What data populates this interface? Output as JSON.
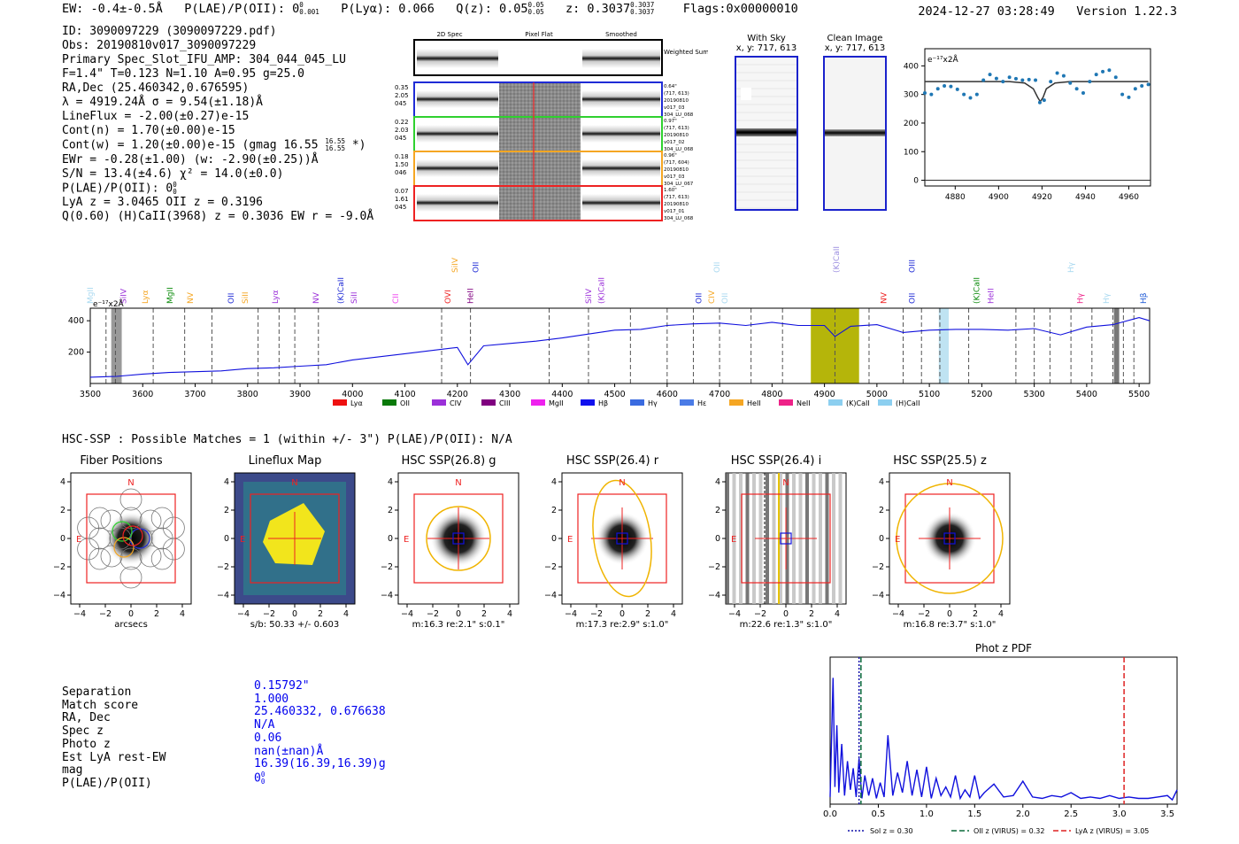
{
  "header": {
    "ew": "EW: -0.4±-0.5Å",
    "plae_label": "P(LAE)/P(OII): 0",
    "plae_sup": "0",
    "plae_sub": "0.001",
    "plya": "P(Lyα): 0.066",
    "qz_label": "Q(z): 0.05",
    "qz_sup": "0.05",
    "qz_sub": "0.05",
    "z_label": "z: 0.3037",
    "z_sup": "0.3037",
    "z_sub": "0.3037",
    "flags": "Flags:0x00000010",
    "timestamp": "2024-12-27 03:28:49",
    "version": "Version 1.22.3"
  },
  "info": {
    "id": "ID: 3090097229 (3090097229.pdf)",
    "obs": "Obs: 20190810v017_3090097229",
    "slot": "Primary Spec_Slot_IFU_AMP: 304_044_045_LU",
    "params": "F=1.4\"  T=0.123  N=1.10  A=0.95  g=25.0",
    "radec": "RA,Dec (25.460342,0.676595)",
    "lambda": "λ = 4919.24Å  σ = 9.54(±1.18)Å",
    "lineflux": "LineFlux = -2.00(±0.27)e-15",
    "contn": "Cont(n) = 1.70(±0.00)e-15",
    "contw": "Cont(w) = 1.20(±0.00)e-15 (gmag 16.55",
    "contw_sup": "16.55",
    "contw_sub": "16.55",
    "contw_end": "*)",
    "ewr": "EWr = -0.28(±1.00) (w: -2.90(±0.25))Å",
    "sn": "S/N = 13.4(±4.6)  χ² = 14.0(±0.0)",
    "plae": "P(LAE)/P(OII): 0",
    "plae_sup": "0",
    "plae_sub": "0",
    "lya": "LyA z = 3.0465  OII z = 0.3196",
    "q": "Q(0.60) (H)CaII(3968) z = 0.3036  EW r = -9.0Å"
  },
  "fiber_panel": {
    "col_headers": [
      "2D Spec",
      "Pixel Flat",
      "Smoothed"
    ],
    "weighted_label": "Weighted Sum",
    "rows": [
      {
        "left": [
          "0.35",
          "2.05",
          "045"
        ],
        "right": [
          "0.64\"",
          "(717, 613)",
          "20190810",
          "v017_03",
          "304_LU_068"
        ],
        "color": "#1f2bd6"
      },
      {
        "left": [
          "0.22",
          "2.03",
          "045"
        ],
        "right": [
          "0.97\"",
          "(717, 613)",
          "20190810",
          "v017_02",
          "304_LU_068"
        ],
        "color": "#2fd12f"
      },
      {
        "left": [
          "0.18",
          "1.50",
          "046"
        ],
        "right": [
          "0.96\"",
          "(717, 604)",
          "20190810",
          "v017_03",
          "304_LU_067"
        ],
        "color": "#f5a623"
      },
      {
        "left": [
          "0.07",
          "1.61",
          "045"
        ],
        "right": [
          "1.60\"",
          "(717, 613)",
          "20190810",
          "v017_01",
          "304_LU_068"
        ],
        "color": "#ee2222"
      }
    ]
  },
  "cutouts": {
    "with_sky_title": "With Sky",
    "with_sky_xy": "x, y: 717, 613",
    "clean_title": "Clean Image",
    "clean_xy": "x, y: 717, 613"
  },
  "zoom_chart": {
    "type": "scatter",
    "ylabel": "e⁻¹⁷x2Å",
    "xlim": [
      4866,
      4970
    ],
    "ylim": [
      -20,
      460
    ],
    "xticks": [
      4880,
      4900,
      4920,
      4940,
      4960
    ],
    "yticks": [
      0,
      100,
      200,
      300,
      400
    ],
    "x": [
      4866,
      4869,
      4872,
      4875,
      4878,
      4881,
      4884,
      4887,
      4890,
      4893,
      4896,
      4899,
      4902,
      4905,
      4908,
      4911,
      4914,
      4917,
      4919,
      4921,
      4924,
      4927,
      4930,
      4933,
      4936,
      4939,
      4942,
      4945,
      4948,
      4951,
      4954,
      4957,
      4960,
      4963,
      4966,
      4969
    ],
    "y": [
      305,
      300,
      320,
      330,
      328,
      318,
      300,
      288,
      300,
      350,
      370,
      356,
      345,
      360,
      355,
      350,
      352,
      350,
      272,
      280,
      345,
      375,
      365,
      340,
      320,
      305,
      345,
      370,
      380,
      385,
      360,
      300,
      290,
      320,
      330,
      335
    ],
    "fit_x": [
      4866,
      4905,
      4912,
      4916,
      4918,
      4919.2,
      4920.5,
      4922,
      4926,
      4933,
      4969
    ],
    "fit_y": [
      345,
      345,
      340,
      320,
      290,
      275,
      290,
      320,
      340,
      345,
      345
    ]
  },
  "spectrum": {
    "type": "line",
    "ylabel": "e⁻¹⁷x2Å",
    "xlim": [
      3500,
      5520
    ],
    "ylim": [
      0,
      480
    ],
    "xticks": [
      3500,
      3600,
      3700,
      3800,
      3900,
      4000,
      4100,
      4200,
      4300,
      4400,
      4500,
      4600,
      4700,
      4800,
      4900,
      5000,
      5100,
      5200,
      5300,
      5400,
      5500
    ],
    "yticks": [
      200,
      400
    ],
    "x": [
      3500,
      3550,
      3600,
      3650,
      3700,
      3750,
      3800,
      3850,
      3900,
      3950,
      4000,
      4050,
      4100,
      4150,
      4200,
      4220,
      4250,
      4300,
      4350,
      4400,
      4450,
      4500,
      4550,
      4600,
      4650,
      4700,
      4750,
      4800,
      4850,
      4900,
      4920,
      4950,
      5000,
      5050,
      5100,
      5150,
      5200,
      5250,
      5300,
      5350,
      5400,
      5450,
      5500,
      5520
    ],
    "y": [
      40,
      45,
      60,
      70,
      75,
      80,
      95,
      100,
      110,
      120,
      150,
      170,
      190,
      210,
      230,
      120,
      240,
      255,
      270,
      290,
      315,
      340,
      345,
      370,
      380,
      385,
      370,
      390,
      370,
      370,
      300,
      365,
      375,
      325,
      340,
      345,
      345,
      340,
      350,
      310,
      360,
      375,
      420,
      400
    ],
    "abs_lines": [
      3530,
      3548,
      3620,
      3680,
      3732,
      3820,
      3860,
      3890,
      3935,
      4170,
      4225,
      4375,
      4450,
      4530,
      4600,
      4650,
      4700,
      4760,
      4820,
      4920,
      4985,
      5050,
      5085,
      5120,
      5175,
      5265,
      5300,
      5330,
      5370,
      5410,
      5450,
      5470,
      5490
    ],
    "bands": [
      {
        "x0": 3540,
        "x1": 3560,
        "color": "#999999"
      },
      {
        "x0": 4874,
        "x1": 4966,
        "color": "#b5b50a"
      },
      {
        "x0": 5118,
        "x1": 5137,
        "color": "#bfe3f2"
      },
      {
        "x0": 5452,
        "x1": 5462,
        "color": "#777777"
      }
    ],
    "line_labels": [
      {
        "x": 3505,
        "text": "MgII",
        "color": "#a9d9f0",
        "row": 0
      },
      {
        "x": 3568,
        "text": "SiIV",
        "color": "#9b30d9",
        "row": 0
      },
      {
        "x": 3610,
        "text": "Lyα",
        "color": "#f5a623",
        "row": 0
      },
      {
        "x": 3657,
        "text": "MgII",
        "color": "#0a8a0a",
        "row": 0
      },
      {
        "x": 3696,
        "text": "NV",
        "color": "#f5a623",
        "row": 0
      },
      {
        "x": 3773,
        "text": "OII",
        "color": "#1f2bd6",
        "row": 0
      },
      {
        "x": 3800,
        "text": "SiII",
        "color": "#f5a623",
        "row": 0
      },
      {
        "x": 3858,
        "text": "Lyα",
        "color": "#9b30d9",
        "row": 0
      },
      {
        "x": 3935,
        "text": "NV",
        "color": "#9b30d9",
        "row": 0
      },
      {
        "x": 3983,
        "text": "(K)CaII",
        "color": "#1f2bd6",
        "row": 0
      },
      {
        "x": 4008,
        "text": "SiII",
        "color": "#9b30d9",
        "row": 0
      },
      {
        "x": 4087,
        "text": "CII",
        "color": "#ee44ee",
        "row": 0
      },
      {
        "x": 4187,
        "text": "OVI",
        "color": "#ee2222",
        "row": 0
      },
      {
        "x": 4230,
        "text": "HeII",
        "color": "#800080",
        "row": 0
      },
      {
        "x": 4455,
        "text": "SiIV",
        "color": "#9b30d9",
        "row": 0
      },
      {
        "x": 4480,
        "text": "(K)CaII",
        "color": "#9b30d9",
        "row": 0
      },
      {
        "x": 4665,
        "text": "OII",
        "color": "#1f2bd6",
        "row": 0
      },
      {
        "x": 4690,
        "text": "CIV",
        "color": "#f5a623",
        "row": 0
      },
      {
        "x": 4715,
        "text": "OII",
        "color": "#a9d9f0",
        "row": 0
      },
      {
        "x": 5018,
        "text": "NV",
        "color": "#ee2222",
        "row": 0
      },
      {
        "x": 5072,
        "text": "OII",
        "color": "#1f2bd6",
        "row": 0
      },
      {
        "x": 5195,
        "text": "(K)CaII",
        "color": "#0a8a0a",
        "row": 0
      },
      {
        "x": 5222,
        "text": "HeII",
        "color": "#9b30d9",
        "row": 0
      },
      {
        "x": 5393,
        "text": "Hγ",
        "color": "#ee2288",
        "row": 0
      },
      {
        "x": 5442,
        "text": "Hγ",
        "color": "#a9d9f0",
        "row": 0
      },
      {
        "x": 5513,
        "text": "Hβ",
        "color": "#1f5bd6",
        "row": 0
      },
      {
        "x": 4200,
        "text": "SiIV",
        "color": "#f5a623",
        "row": 1
      },
      {
        "x": 4240,
        "text": "OII",
        "color": "#1f2bd6",
        "row": 1
      },
      {
        "x": 4700,
        "text": "OII",
        "color": "#a9d9f0",
        "row": 1
      },
      {
        "x": 4928,
        "text": "(K)CaII",
        "color": "#9b8ee0",
        "row": 1
      },
      {
        "x": 5072,
        "text": "OIII",
        "color": "#1f2bd6",
        "row": 1
      },
      {
        "x": 5375,
        "text": "Hγ",
        "color": "#a9d9f0",
        "row": 1
      }
    ],
    "legend": [
      {
        "label": "Lyα",
        "color": "#ee1111"
      },
      {
        "label": "OII",
        "color": "#0a7a0a"
      },
      {
        "label": "CIV",
        "color": "#9b30d9"
      },
      {
        "label": "CIII",
        "color": "#800080"
      },
      {
        "label": "MgII",
        "color": "#ee22ee"
      },
      {
        "label": "Hβ",
        "color": "#1010ee"
      },
      {
        "label": "Hγ",
        "color": "#3a6be0"
      },
      {
        "label": "Hε",
        "color": "#4a7be6"
      },
      {
        "label": "HeII",
        "color": "#f5a623"
      },
      {
        "label": "NeII",
        "color": "#ee2288"
      },
      {
        "label": "(K)CaII",
        "color": "#8ccff0"
      },
      {
        "label": "(H)CaII",
        "color": "#8ccff0"
      }
    ]
  },
  "hsc": {
    "heading": "HSC-SSP : Possible Matches = 1 (within +/- 3\")  P(LAE)/P(OII): N/A",
    "north": "N",
    "east": "E",
    "panels": [
      {
        "title": "Fiber Positions",
        "caption": "arcsecs",
        "kind": "fiber"
      },
      {
        "title": "Lineflux Map",
        "caption": "s/b: 50.33 +/- 0.603",
        "kind": "lineflux"
      },
      {
        "title": "HSC SSP(26.8) g",
        "caption": "m:16.3  re:2.1\"  s:0.1\"",
        "kind": "g"
      },
      {
        "title": "HSC SSP(26.4) r",
        "caption": "m:17.3  re:2.9\"  s:1.0\"",
        "kind": "r"
      },
      {
        "title": "HSC SSP(26.4) i",
        "caption": "m:22.6  re:1.3\"  s:1.0\"",
        "kind": "i"
      },
      {
        "title": "HSC SSP(25.5) z",
        "caption": "m:16.8  re:3.7\"  s:1.0\"",
        "kind": "z"
      }
    ],
    "axis_ticks_x": [
      "−4",
      "−2",
      "0",
      "2",
      "4"
    ],
    "axis_ticks_y": [
      "4",
      "2",
      "0",
      "−2",
      "−4"
    ]
  },
  "match": {
    "labels": [
      "Separation",
      "Match score",
      "RA, Dec",
      "Spec z",
      "Photo z",
      "Est LyA rest-EW",
      "mag",
      "P(LAE)/P(OII)"
    ],
    "values": [
      "0.15792\"",
      "1.000",
      "25.460332, 0.676638",
      "N/A",
      "0.06",
      "nan(±nan)Å",
      "16.39(16.39,16.39)g",
      "0"
    ],
    "plae_sup": "0",
    "plae_sub": "0"
  },
  "photz": {
    "type": "line",
    "title": "Phot z PDF",
    "xlim": [
      0,
      3.6
    ],
    "ylim": [
      0,
      1
    ],
    "xticks": [
      "0.0",
      "0.5",
      "1.0",
      "1.5",
      "2.0",
      "2.5",
      "3.0",
      "3.5"
    ],
    "x": [
      0.0,
      0.03,
      0.05,
      0.07,
      0.09,
      0.12,
      0.15,
      0.18,
      0.21,
      0.24,
      0.27,
      0.3,
      0.33,
      0.36,
      0.4,
      0.44,
      0.48,
      0.52,
      0.56,
      0.6,
      0.65,
      0.7,
      0.75,
      0.8,
      0.85,
      0.9,
      0.95,
      1.0,
      1.05,
      1.1,
      1.15,
      1.2,
      1.25,
      1.3,
      1.35,
      1.4,
      1.45,
      1.5,
      1.55,
      1.6,
      1.7,
      1.8,
      1.9,
      2.0,
      2.1,
      2.2,
      2.3,
      2.4,
      2.5,
      2.6,
      2.7,
      2.8,
      2.9,
      3.0,
      3.1,
      3.2,
      3.3,
      3.4,
      3.5,
      3.55,
      3.6
    ],
    "y": [
      0.05,
      0.88,
      0.12,
      0.55,
      0.08,
      0.42,
      0.06,
      0.3,
      0.1,
      0.25,
      0.05,
      0.32,
      0.04,
      0.2,
      0.06,
      0.18,
      0.04,
      0.15,
      0.05,
      0.48,
      0.06,
      0.22,
      0.08,
      0.3,
      0.06,
      0.24,
      0.05,
      0.26,
      0.04,
      0.18,
      0.06,
      0.12,
      0.05,
      0.2,
      0.04,
      0.1,
      0.05,
      0.2,
      0.04,
      0.08,
      0.14,
      0.05,
      0.06,
      0.16,
      0.05,
      0.04,
      0.06,
      0.05,
      0.08,
      0.04,
      0.05,
      0.04,
      0.06,
      0.04,
      0.05,
      0.04,
      0.04,
      0.05,
      0.06,
      0.03,
      0.1
    ],
    "sol_z": 0.3,
    "oii_z": 0.32,
    "lya_z": 3.05,
    "legend": [
      {
        "label": "Sol z = 0.30",
        "color": "#1010aa",
        "dash": "2,2"
      },
      {
        "label": "OII z (VIRUS) = 0.32",
        "color": "#0a6a3a",
        "dash": "6,3"
      },
      {
        "label": "LyA z (VIRUS) = 3.05",
        "color": "#dd2222",
        "dash": "6,3"
      }
    ]
  }
}
